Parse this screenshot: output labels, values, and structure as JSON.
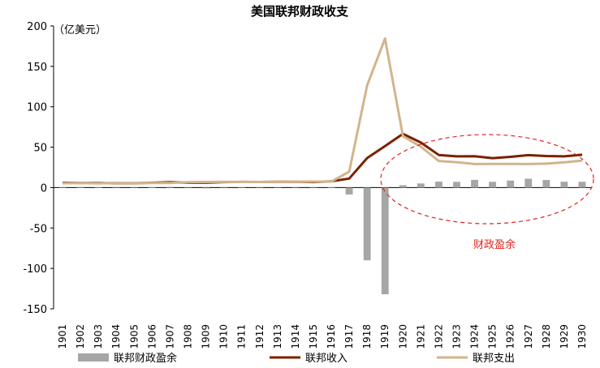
{
  "chart_data": {
    "type": "bar+line",
    "title": "美国联邦财政收支",
    "unit_label": "（亿美元）",
    "ylim": [
      -150,
      200
    ],
    "yticks": [
      200,
      150,
      100,
      50,
      0,
      -50,
      -100,
      -150
    ],
    "categories": [
      "1901",
      "1902",
      "1903",
      "1904",
      "1905",
      "1906",
      "1907",
      "1908",
      "1909",
      "1910",
      "1911",
      "1912",
      "1913",
      "1914",
      "1915",
      "1916",
      "1917",
      "1918",
      "1919",
      "1920",
      "1921",
      "1922",
      "1923",
      "1924",
      "1925",
      "1926",
      "1927",
      "1928",
      "1929",
      "1930"
    ],
    "series": [
      {
        "name": "联邦财政盈余",
        "kind": "bar",
        "color": "#a6a6a6",
        "values": [
          0.6,
          0.1,
          0.5,
          -0.4,
          -0.2,
          0.3,
          0.9,
          -0.6,
          -0.9,
          -0.2,
          0.1,
          0.0,
          0.0,
          -0.1,
          -0.6,
          0.5,
          -8.5,
          -90,
          -132,
          2.9,
          5.1,
          7.4,
          7.1,
          9.6,
          7.2,
          8.7,
          11.0,
          9.4,
          7.3,
          7.2
        ]
      },
      {
        "name": "联邦收入",
        "kind": "line",
        "color": "#7b2000",
        "values": [
          5.9,
          5.6,
          5.6,
          5.4,
          5.4,
          5.9,
          6.6,
          6.0,
          6.0,
          6.8,
          7.0,
          6.9,
          7.1,
          7.3,
          6.8,
          7.8,
          11.2,
          36.5,
          51.3,
          66.5,
          55.7,
          40.3,
          38.6,
          38.7,
          36.4,
          38.0,
          40.1,
          39.0,
          38.6,
          40.6
        ]
      },
      {
        "name": "联邦支出",
        "kind": "line",
        "color": "#d2b48c",
        "values": [
          5.3,
          5.5,
          5.1,
          5.8,
          5.6,
          5.6,
          5.7,
          6.6,
          6.9,
          7.0,
          6.9,
          6.9,
          7.1,
          7.4,
          7.4,
          7.3,
          19.7,
          126.5,
          184.5,
          63.6,
          50.6,
          32.9,
          31.4,
          29.1,
          29.2,
          29.3,
          29.1,
          29.6,
          31.3,
          33.4
        ]
      }
    ],
    "annotation": {
      "text": "财政盈余",
      "color": "#e0241b",
      "style": "dashed ellipse"
    },
    "legend_position": "bottom",
    "grid": false
  }
}
